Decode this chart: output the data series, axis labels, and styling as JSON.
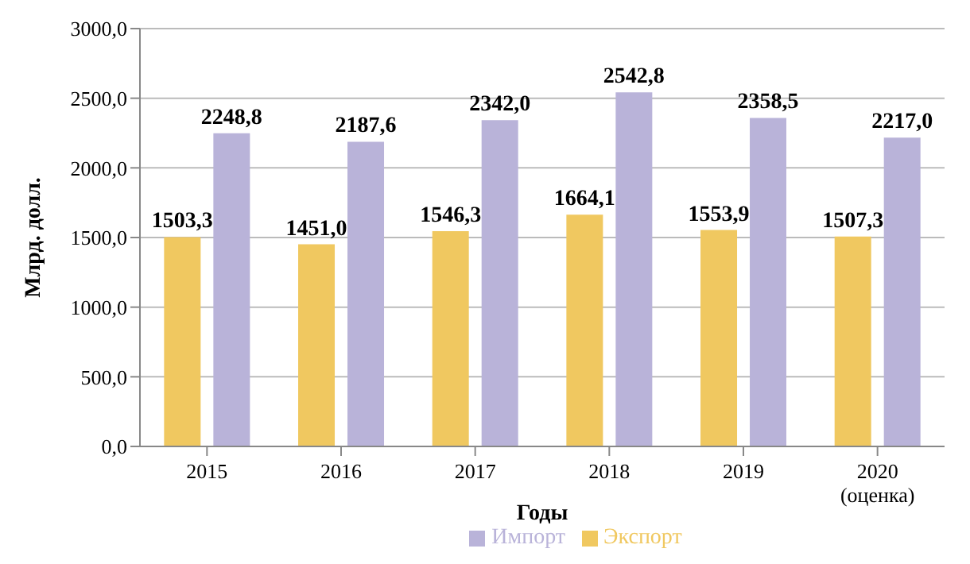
{
  "chart_data": {
    "type": "bar",
    "xlabel": "Годы",
    "ylabel": "Млрд. долл.",
    "categories": [
      "2015",
      "2016",
      "2017",
      "2018",
      "2019",
      "2020\n(оценка)"
    ],
    "series": [
      {
        "name": "Экспорт",
        "color": "#f0c860",
        "values": [
          1503.3,
          1451.0,
          1546.3,
          1664.1,
          1553.9,
          1507.3
        ],
        "value_labels": [
          "1503,3",
          "1451,0",
          "1546,3",
          "1664,1",
          "1553,9",
          "1507,3"
        ]
      },
      {
        "name": "Импорт",
        "color": "#b9b3d9",
        "values": [
          2248.8,
          2187.6,
          2342.0,
          2542.8,
          2358.5,
          2217.0
        ],
        "value_labels": [
          "2248,8",
          "2187,6",
          "2342,0",
          "2542,8",
          "2358,5",
          "2217,0"
        ]
      }
    ],
    "ylim": [
      0,
      3000
    ],
    "yticks": [
      {
        "value": 0,
        "label": "0,0"
      },
      {
        "value": 500,
        "label": "500,0"
      },
      {
        "value": 1000,
        "label": "1000,0"
      },
      {
        "value": 1500,
        "label": "1500,0"
      },
      {
        "value": 2000,
        "label": "2000,0"
      },
      {
        "value": 2500,
        "label": "2500,0"
      },
      {
        "value": 3000,
        "label": "3000,0"
      }
    ],
    "grid": "y",
    "legend": "bottom"
  }
}
